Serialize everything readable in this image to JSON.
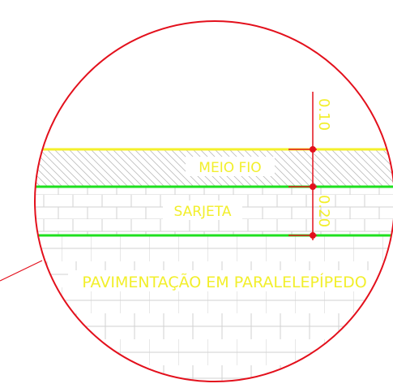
{
  "labels": {
    "curb": "MEIO FIO",
    "gutter": "SARJETA",
    "paving": "PAVIMENTAÇÃO EM PARALELEPÍPEDO",
    "dim_top": "0.10",
    "dim_bottom": "0.20"
  },
  "colors": {
    "circle": "#e3101c",
    "curb_line": "#f4f02a",
    "green_line": "#1fe01f",
    "dim_line": "#e3101c",
    "text": "#f2ef2b",
    "hatch": "#c9c9c9"
  }
}
